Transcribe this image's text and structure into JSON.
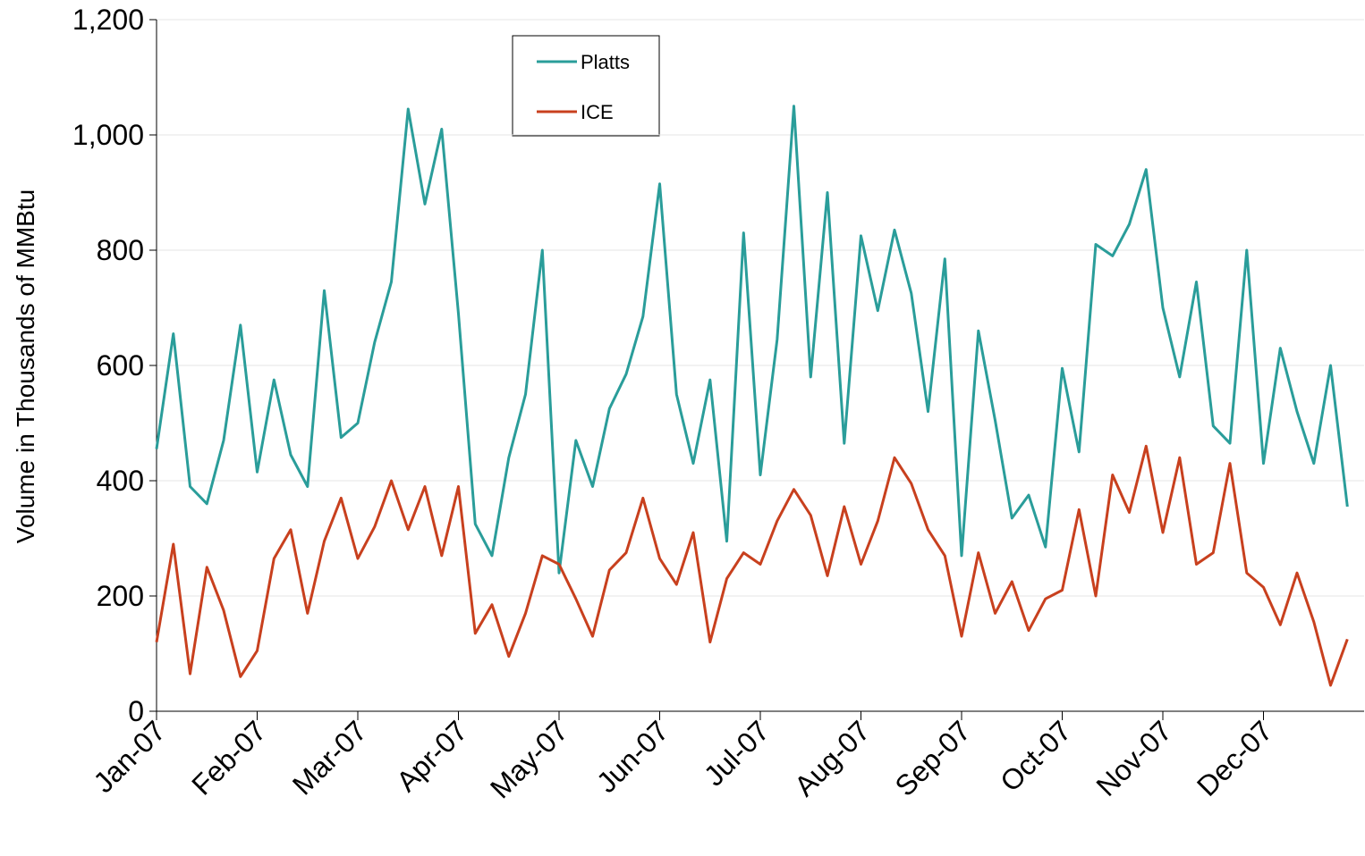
{
  "chart_data": {
    "type": "line",
    "y_label": "Volume in Thousands of MMBtu",
    "categories": [
      "Jan-07",
      null,
      null,
      null,
      null,
      null,
      "Feb-07",
      null,
      null,
      null,
      null,
      null,
      "Mar-07",
      null,
      null,
      null,
      null,
      null,
      "Apr-07",
      null,
      null,
      null,
      null,
      null,
      "May-07",
      null,
      null,
      null,
      null,
      null,
      "Jun-07",
      null,
      null,
      null,
      null,
      null,
      "Jul-07",
      null,
      null,
      null,
      null,
      null,
      "Aug-07",
      null,
      null,
      null,
      null,
      null,
      "Sep-07",
      null,
      null,
      null,
      null,
      null,
      "Oct-07",
      null,
      null,
      null,
      null,
      null,
      "Nov-07",
      null,
      null,
      null,
      null,
      null,
      "Dec-07",
      null,
      null,
      null,
      null,
      null
    ],
    "series": [
      {
        "name": "Platts",
        "color": "#2a9d9a",
        "values": [
          455,
          655,
          390,
          360,
          470,
          670,
          415,
          575,
          445,
          390,
          730,
          475,
          500,
          640,
          745,
          1045,
          880,
          1010,
          690,
          325,
          270,
          440,
          550,
          800,
          240,
          470,
          390,
          525,
          585,
          685,
          915,
          550,
          430,
          575,
          295,
          830,
          410,
          645,
          1050,
          580,
          900,
          465,
          825,
          695,
          835,
          725,
          520,
          785,
          270,
          660,
          505,
          335,
          375,
          285,
          595,
          450,
          810,
          790,
          845,
          940,
          700,
          580,
          745,
          495,
          465,
          800,
          430,
          630,
          520,
          430,
          600,
          355
        ]
      },
      {
        "name": "ICE",
        "color": "#c8401e",
        "values": [
          120,
          290,
          65,
          250,
          175,
          60,
          105,
          265,
          315,
          170,
          295,
          370,
          265,
          320,
          400,
          315,
          390,
          270,
          390,
          135,
          185,
          95,
          170,
          270,
          255,
          195,
          130,
          245,
          275,
          370,
          265,
          220,
          310,
          120,
          230,
          275,
          255,
          330,
          385,
          340,
          235,
          355,
          255,
          330,
          440,
          395,
          315,
          270,
          130,
          275,
          170,
          225,
          140,
          195,
          210,
          350,
          200,
          410,
          345,
          460,
          310,
          440,
          255,
          275,
          430,
          240,
          215,
          150,
          240,
          155,
          45,
          125
        ]
      }
    ],
    "ylim": [
      0,
      1200
    ],
    "yticks": [
      0,
      200,
      400,
      600,
      800,
      {
        "value": 1000,
        "label": "1,000"
      },
      {
        "value": 1200,
        "label": "1,200"
      }
    ],
    "grid": true
  }
}
